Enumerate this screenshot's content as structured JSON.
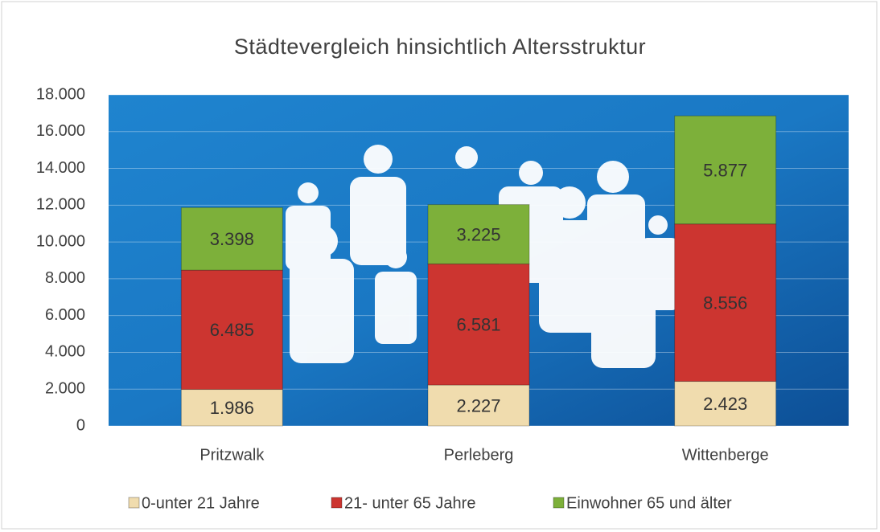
{
  "chart_data": {
    "type": "stacked_bar",
    "title": "Städtevergleich hinsichtlich  Altersstruktur",
    "categories": [
      "Pritzwalk",
      "Perleberg",
      "Wittenberge"
    ],
    "series": [
      {
        "name": "0-unter 21 Jahre",
        "color": "#f0dcae",
        "values": [
          1986,
          2227,
          2423
        ],
        "value_labels": [
          "1.986",
          "2.227",
          "2.423"
        ]
      },
      {
        "name": "21- unter 65 Jahre",
        "color": "#cc3530",
        "values": [
          6485,
          6581,
          8556
        ],
        "value_labels": [
          "6.485",
          "6.581",
          "8.556"
        ]
      },
      {
        "name": "Einwohner 65 und älter",
        "color": "#7db03a",
        "values": [
          3398,
          3225,
          5877
        ],
        "value_labels": [
          "3.398",
          "3.225",
          "5.877"
        ]
      }
    ],
    "ylim": [
      0,
      18000
    ],
    "yticks": [
      0,
      {
        "value": 2000,
        "label": "2.000"
      },
      {
        "value": 4000,
        "label": "4.000"
      },
      {
        "value": 6000,
        "label": "6.000"
      },
      {
        "value": 8000,
        "label": "8.000"
      },
      {
        "value": 10000,
        "label": "10.000"
      },
      {
        "value": 12000,
        "label": "12.000"
      },
      {
        "value": 14000,
        "label": "14.000"
      },
      {
        "value": 16000,
        "label": "16.000"
      },
      {
        "value": 18000,
        "label": "18.000"
      }
    ],
    "grid": true,
    "legend": "bottom"
  }
}
